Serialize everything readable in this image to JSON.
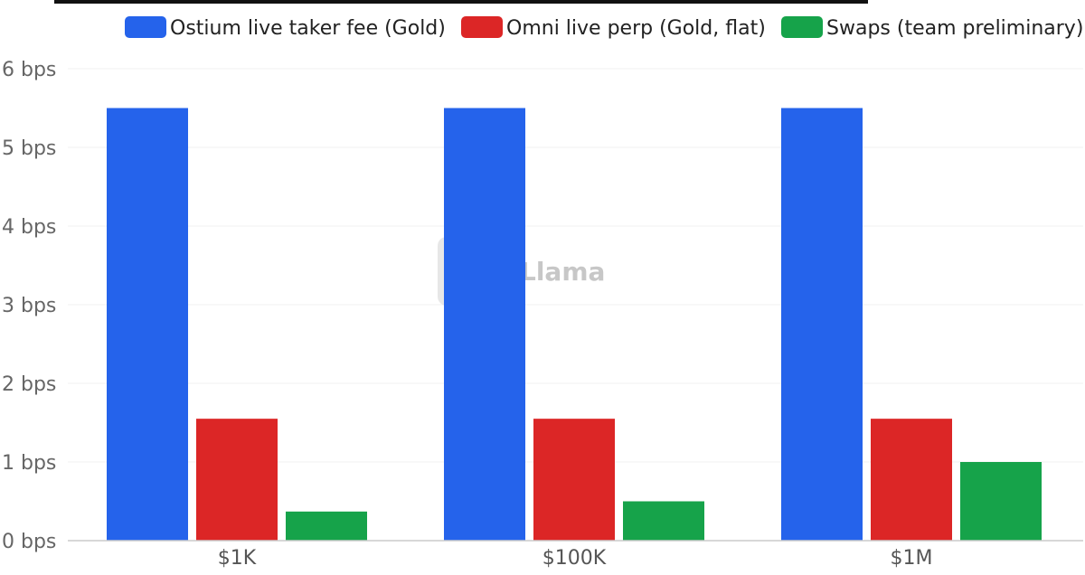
{
  "watermark": "DefiLlama",
  "colors": {
    "series1": "#2563eb",
    "series2": "#dc2626",
    "series3": "#16a34a"
  },
  "chart_data": {
    "type": "bar",
    "title": "",
    "categories": [
      "$1K",
      "$100K",
      "$1M"
    ],
    "series": [
      {
        "name": "Ostium live taker fee (Gold)",
        "color": "#2563eb",
        "values": [
          5.5,
          5.5,
          5.5
        ]
      },
      {
        "name": "Omni live perp (Gold, flat)",
        "color": "#dc2626",
        "values": [
          1.55,
          1.55,
          1.55
        ]
      },
      {
        "name": "Swaps (team preliminary)",
        "color": "#16a34a",
        "values": [
          0.37,
          0.5,
          1.0
        ]
      }
    ],
    "yticks": [
      "0  bps",
      "1  bps",
      "2  bps",
      "3  bps",
      "4  bps",
      "5  bps",
      "6  bps"
    ],
    "ylim": [
      0,
      6
    ],
    "xlabel": "",
    "ylabel": "",
    "grid": true,
    "legend_position": "top-right"
  }
}
